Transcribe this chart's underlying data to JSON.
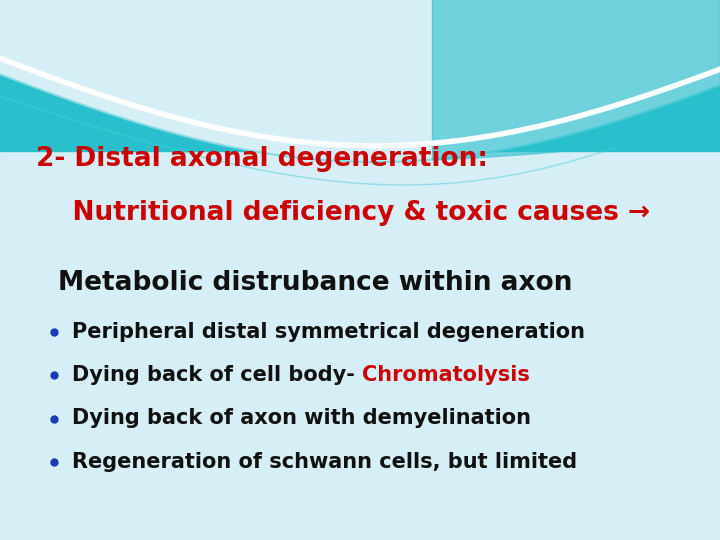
{
  "background_color": "#d6eef5",
  "title_line1": "2- Distal axonal degeneration:",
  "title_line2": "    Nutritional deficiency & toxic causes →",
  "title_color": "#cc0000",
  "title_fontsize": 19,
  "subtitle": "Metabolic distrubance within axon",
  "subtitle_color": "#111111",
  "subtitle_fontsize": 19,
  "bullet_color": "#1a3ab5",
  "bullet_fontsize": 15,
  "bullets": [
    [
      {
        "t": "Peripheral distal symmetrical degeneration",
        "c": "#111111"
      }
    ],
    [
      {
        "t": "Dying back of cell body- ",
        "c": "#111111"
      },
      {
        "t": "Chromatolysis",
        "c": "#cc0000"
      }
    ],
    [
      {
        "t": "Dying back of axon with demyelination",
        "c": "#111111"
      }
    ],
    [
      {
        "t": "Regeneration of schwann cells, but limited",
        "c": "#111111"
      }
    ]
  ],
  "wave_teal": "#29bfcc",
  "wave_teal2": "#4acfda",
  "figwidth": 7.2,
  "figheight": 5.4,
  "dpi": 100
}
